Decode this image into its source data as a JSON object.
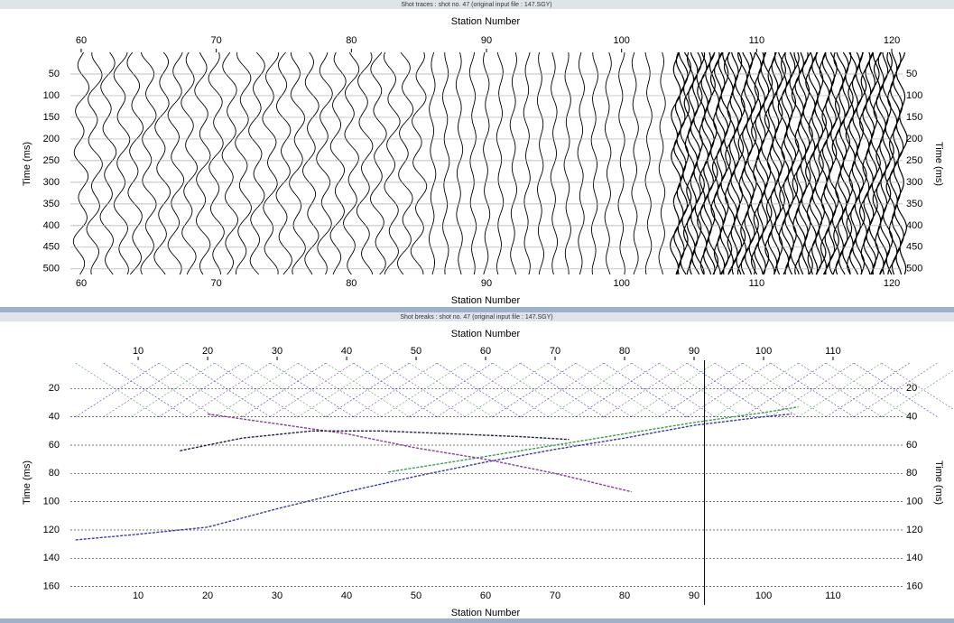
{
  "panels": [
    {
      "type": "traces",
      "title": "Shot traces : shot no. 47 (original input file : 147.SGY)",
      "x_label": "Station Number",
      "y_label": "Time (ms)",
      "xlim": [
        59.2,
        120.8
      ],
      "xticks": [
        60,
        70,
        80,
        90,
        100,
        110,
        120
      ],
      "ylim": [
        0,
        515
      ],
      "yticks": [
        50,
        100,
        150,
        200,
        250,
        300,
        350,
        400,
        450,
        500
      ],
      "grid": true
    },
    {
      "type": "line",
      "title": "Shot breaks : shot no. 47 (original input file : 147.SGY)",
      "x_label": "Station Number",
      "y_label": "Time (ms)",
      "xlim": [
        0.25,
        120
      ],
      "xticks": [
        10,
        20,
        30,
        40,
        50,
        60,
        70,
        80,
        90,
        100,
        110
      ],
      "ylim": [
        0,
        173
      ],
      "yticks": [
        20,
        40,
        60,
        80,
        100,
        120,
        140,
        160
      ],
      "grid": true,
      "cursor_station": 91.5,
      "series": [
        {
          "color": "#3a3ab0",
          "x": [
            1,
            10,
            20,
            30,
            40,
            50,
            60,
            70,
            80,
            90,
            100,
            104
          ],
          "values": [
            127,
            123,
            118,
            105,
            93,
            82,
            72,
            63,
            55,
            46,
            40,
            38
          ]
        },
        {
          "color": "#3aa04a",
          "x": [
            46,
            55,
            60,
            70,
            80,
            90,
            100,
            105
          ],
          "values": [
            79,
            72,
            68,
            60,
            52,
            44,
            37,
            33
          ]
        },
        {
          "color": "#8a3aa0",
          "x": [
            20,
            30,
            40,
            50,
            60,
            70,
            81
          ],
          "values": [
            38,
            45,
            52,
            62,
            70,
            80,
            93
          ]
        },
        {
          "color": "#222244",
          "x": [
            16,
            25,
            35,
            45,
            55,
            65,
            72
          ],
          "values": [
            64,
            55,
            50,
            50,
            52,
            54,
            56
          ]
        }
      ]
    }
  ]
}
